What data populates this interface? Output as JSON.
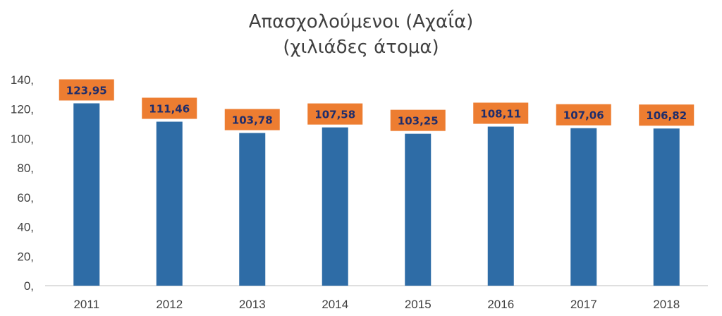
{
  "chart_data": {
    "type": "bar",
    "title": "Απασχολούμενοι (Αχαΐα)",
    "subtitle": "(χιλιάδες άτομα)",
    "categories": [
      "2011",
      "2012",
      "2013",
      "2014",
      "2015",
      "2016",
      "2017",
      "2018"
    ],
    "values": [
      123.95,
      111.46,
      103.78,
      107.58,
      103.25,
      108.11,
      107.06,
      106.82
    ],
    "data_labels": [
      "123,95",
      "111,46",
      "103,78",
      "107,58",
      "103,25",
      "108,11",
      "107,06",
      "106,82"
    ],
    "yticks": [
      0,
      20,
      40,
      60,
      80,
      100,
      120,
      140
    ],
    "ytick_labels": [
      "0,",
      "20,",
      "40,",
      "60,",
      "80,",
      "100,",
      "120,",
      "140,"
    ],
    "ylim": [
      0,
      140
    ],
    "xlabel": "",
    "ylabel": "",
    "grid": false,
    "legend": "none",
    "colors": {
      "bar": "#2e6ca6",
      "label_box": "#ed7d31",
      "label_text": "#1f2d6b",
      "axis": "#bfbfbf"
    }
  }
}
